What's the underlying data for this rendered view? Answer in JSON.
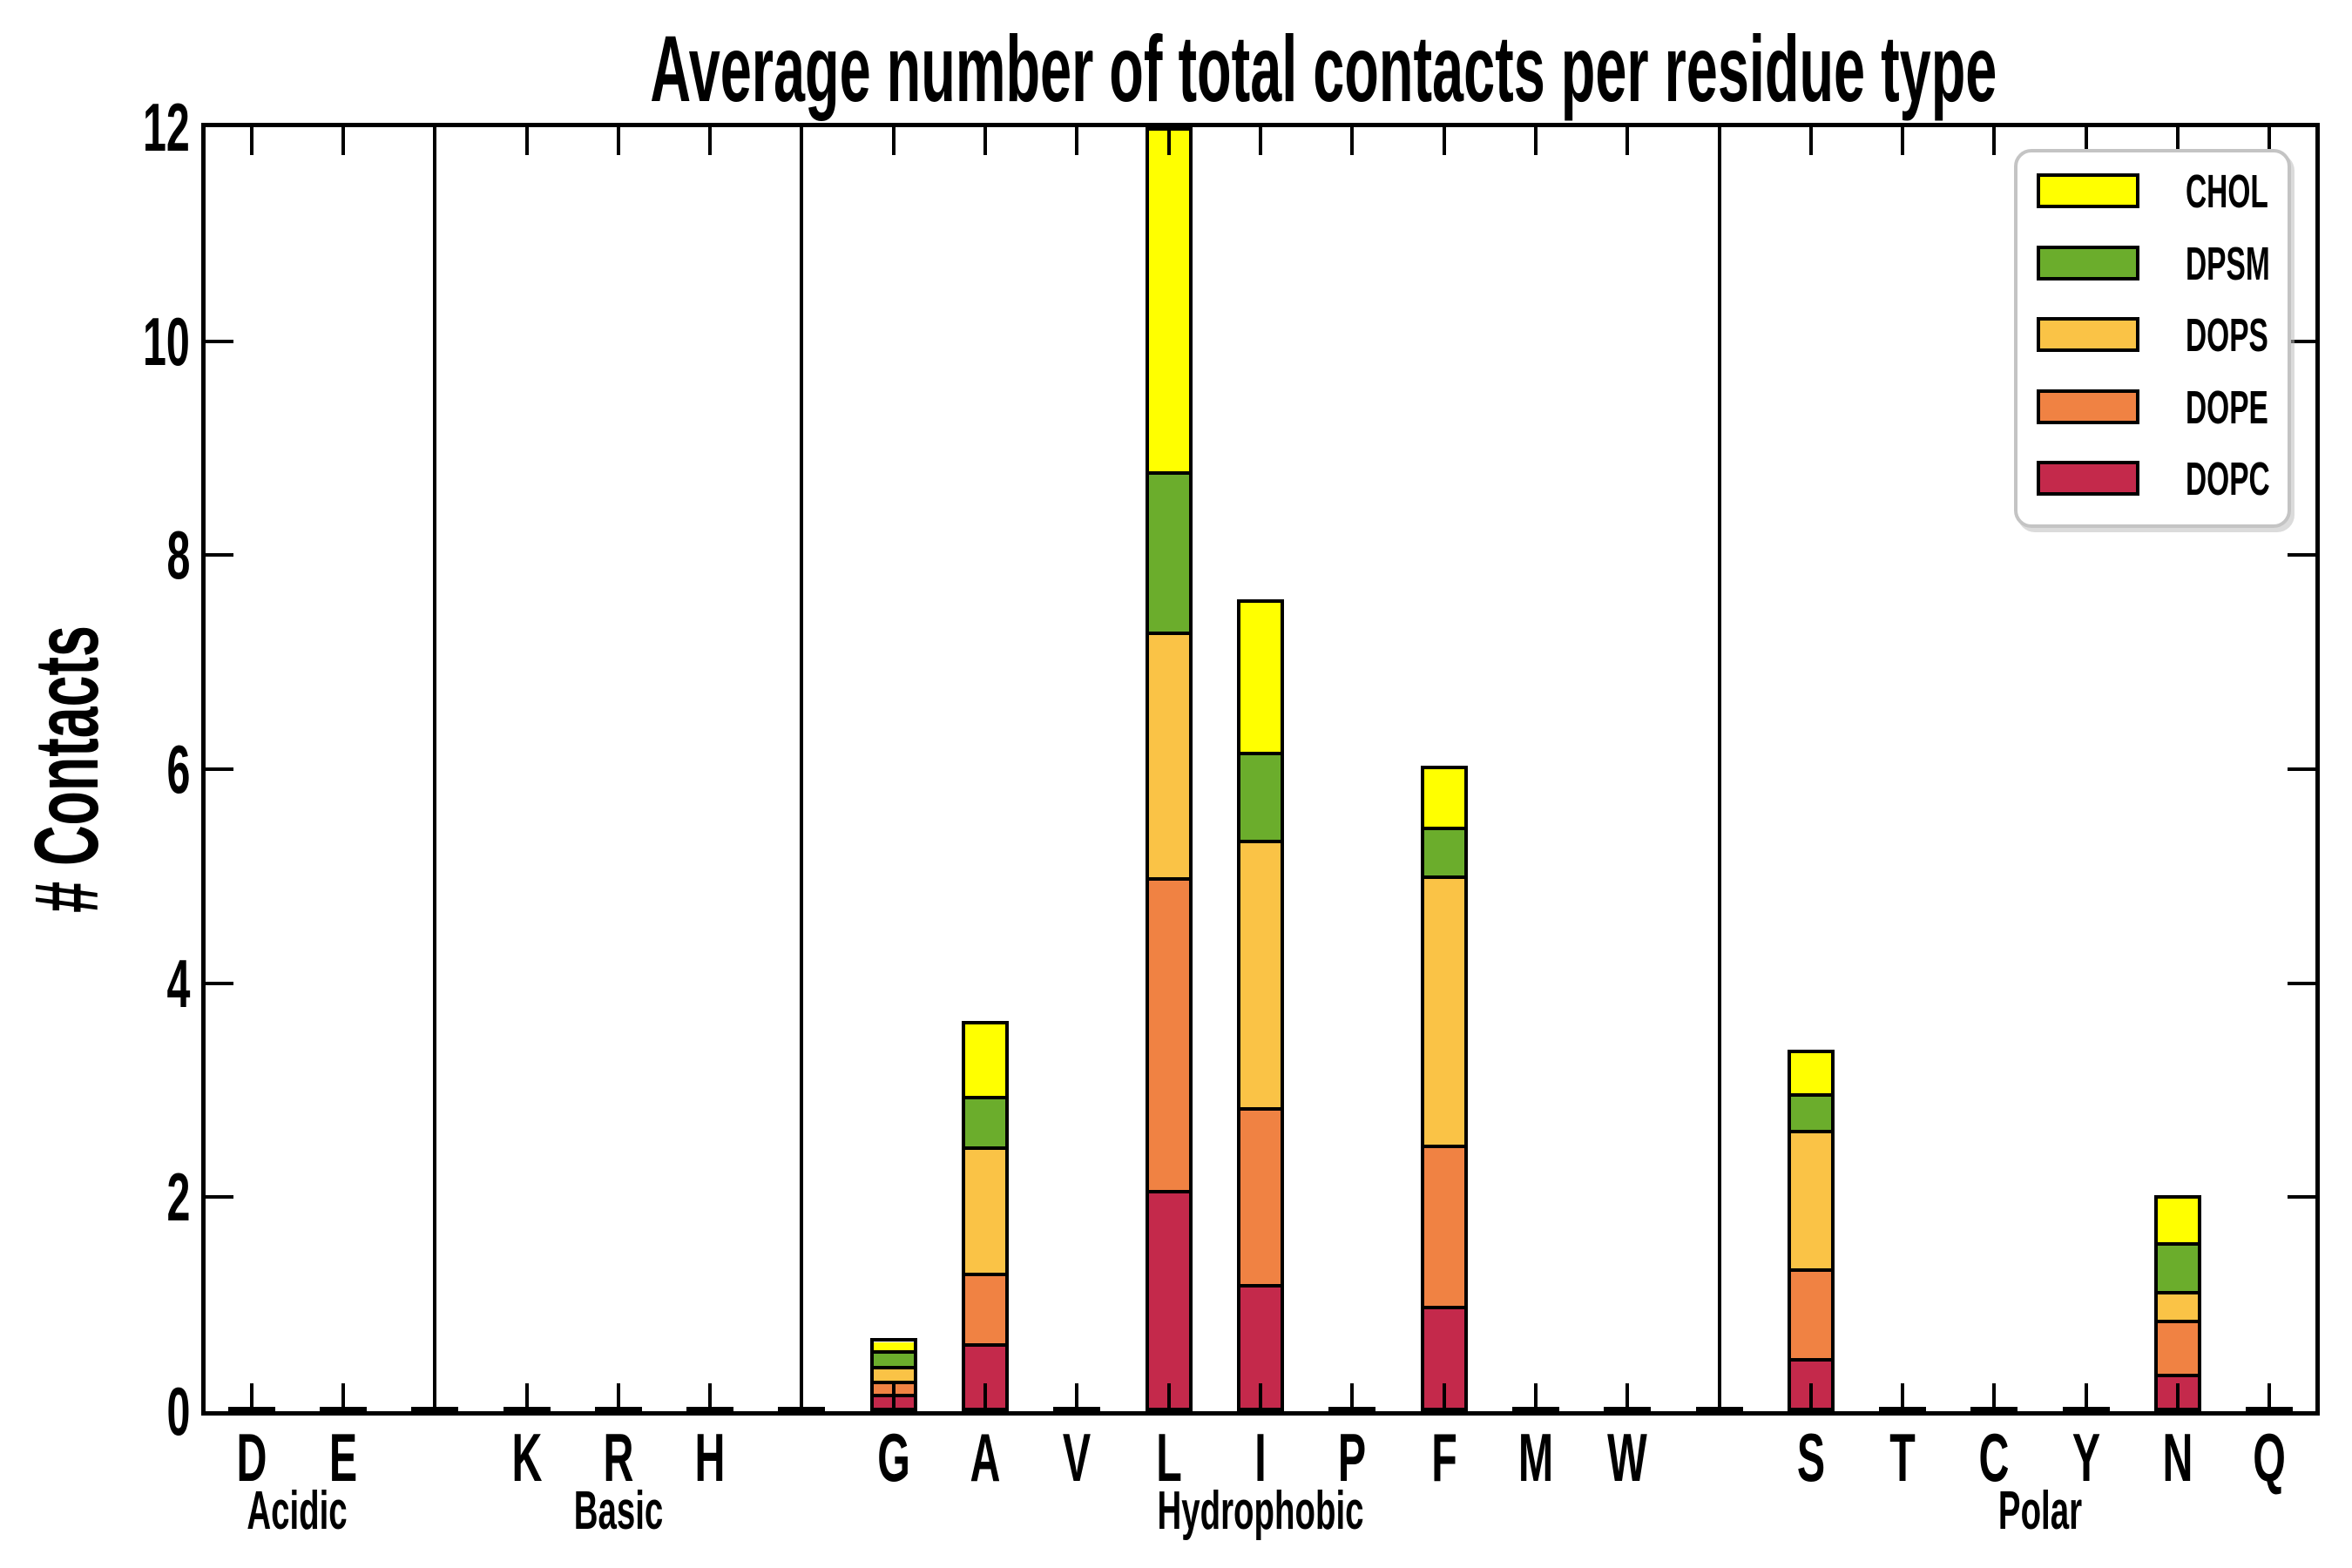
{
  "title": "Average number of total contacts per residue type",
  "y_axis": {
    "label": "# Contacts",
    "ticks": [
      0,
      2,
      4,
      6,
      8,
      10,
      12
    ],
    "range": [
      0,
      12
    ]
  },
  "legend": {
    "entries": [
      {
        "label": "CHOL",
        "color": "#FFFF00"
      },
      {
        "label": "DPSM",
        "color": "#6BAD2C"
      },
      {
        "label": "DOPS",
        "color": "#FAC346"
      },
      {
        "label": "DOPE",
        "color": "#F08243"
      },
      {
        "label": "DOPC",
        "color": "#C4294B"
      }
    ]
  },
  "chart_data": {
    "type": "bar",
    "stacked": true,
    "title": "Average number of total contacts per residue type",
    "xlabel": "",
    "ylabel": "# Contacts",
    "ylim": [
      0,
      12
    ],
    "yticks": [
      0,
      2,
      4,
      6,
      8,
      10,
      12
    ],
    "grid": false,
    "legend_position": "upper right",
    "categories": [
      "D",
      "E",
      "K",
      "R",
      "H",
      "G",
      "A",
      "V",
      "L",
      "I",
      "P",
      "F",
      "M",
      "W",
      "S",
      "T",
      "C",
      "Y",
      "N",
      "Q"
    ],
    "groups": [
      {
        "label": "Acidic",
        "residues": [
          "D",
          "E"
        ]
      },
      {
        "label": "Basic",
        "residues": [
          "K",
          "R",
          "H"
        ]
      },
      {
        "label": "Hydrophobic",
        "residues": [
          "G",
          "A",
          "V",
          "L",
          "I",
          "P",
          "F",
          "M",
          "W"
        ]
      },
      {
        "label": "Polar",
        "residues": [
          "S",
          "T",
          "C",
          "Y",
          "N",
          "Q"
        ]
      }
    ],
    "series": [
      {
        "name": "DOPC",
        "color": "#C4294B",
        "values": [
          0,
          0,
          0,
          0,
          0,
          0.13,
          0.6,
          0,
          2.03,
          1.15,
          0,
          0.95,
          0,
          0,
          0.46,
          0,
          0,
          0,
          0.31,
          0
        ]
      },
      {
        "name": "DOPE",
        "color": "#F08243",
        "values": [
          0,
          0,
          0,
          0,
          0,
          0.13,
          0.67,
          0,
          2.94,
          1.67,
          0,
          1.52,
          0,
          0,
          0.85,
          0,
          0,
          0,
          0.52,
          0
        ]
      },
      {
        "name": "DOPS",
        "color": "#FAC346",
        "values": [
          0,
          0,
          0,
          0,
          0,
          0.15,
          1.2,
          0,
          2.31,
          2.52,
          0,
          2.54,
          0,
          0,
          1.32,
          0,
          0,
          0,
          0.28,
          0
        ]
      },
      {
        "name": "DPSM",
        "color": "#6BAD2C",
        "values": [
          0,
          0,
          0,
          0,
          0,
          0.17,
          0.48,
          0,
          1.5,
          0.83,
          0,
          0.46,
          0,
          0,
          0.35,
          0,
          0,
          0,
          0.47,
          0
        ]
      },
      {
        "name": "CHOL",
        "color": "#FFFF00",
        "values": [
          0,
          0,
          0,
          0,
          0,
          0.1,
          0.7,
          0,
          3.22,
          1.42,
          0,
          0.56,
          0,
          0,
          0.4,
          0,
          0,
          0,
          0.44,
          0
        ]
      }
    ],
    "totals_note": "L bar reaches the top of the axis (12.0); near-zero residues drawn as flat strips"
  }
}
